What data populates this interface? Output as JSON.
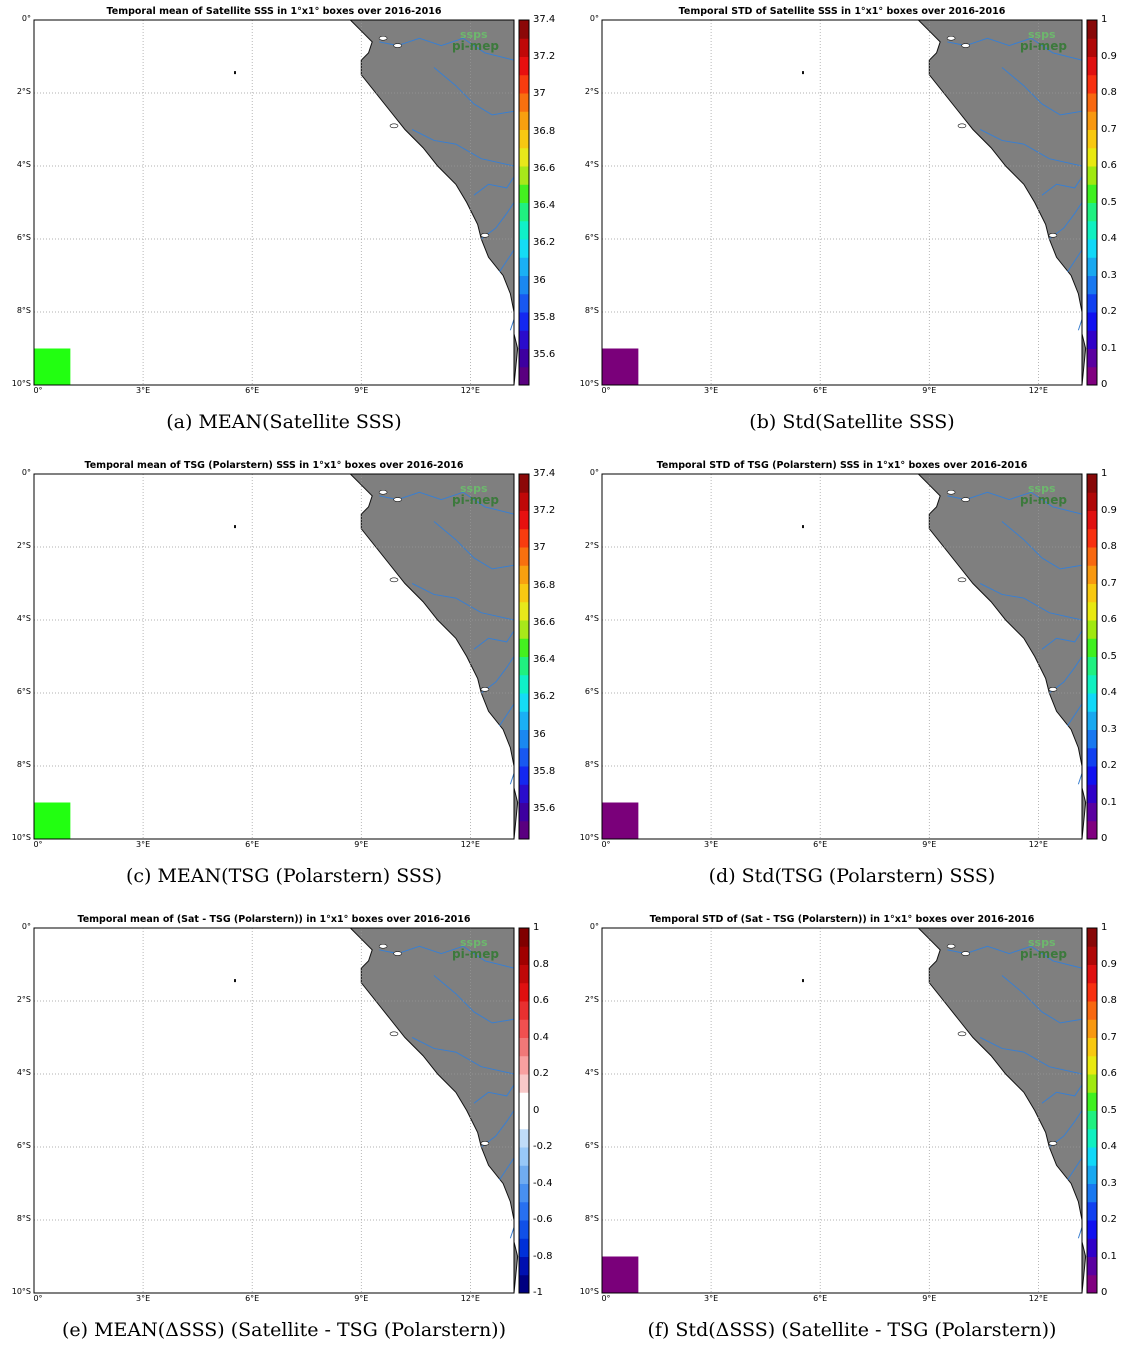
{
  "panels": [
    {
      "id": "a",
      "title": "Temporal mean of Satellite SSS in 1°x1° boxes over 2016-2016",
      "caption": "(a) MEAN(Satellite SSS)",
      "box_color": "#22ff11",
      "show_box": true,
      "colorbar": {
        "colors": [
          "#5a0080",
          "#3d00a0",
          "#2a0ccc",
          "#1428f0",
          "#1858f0",
          "#1a88f0",
          "#1ab0f5",
          "#15dcf5",
          "#10f0c8",
          "#20f080",
          "#44f020",
          "#a8e81a",
          "#e8e81a",
          "#f8c812",
          "#f8a010",
          "#f87010",
          "#f83c10",
          "#e81010",
          "#c00808",
          "#8c0808"
        ],
        "ticks": [
          "37.4",
          "37.2",
          "37",
          "36.8",
          "36.6",
          "36.4",
          "36.2",
          "36",
          "35.8",
          "35.6"
        ]
      }
    },
    {
      "id": "b",
      "title": "Temporal STD of Satellite SSS in 1°x1° boxes over 2016-2016",
      "caption": "(b) Std(Satellite SSS)",
      "box_color": "#7a007a",
      "show_box": true,
      "colorbar": {
        "colors": [
          "#800080",
          "#5a00a0",
          "#3000c8",
          "#1010f0",
          "#1040f0",
          "#1878f0",
          "#18a8f0",
          "#10d8f8",
          "#10f0c0",
          "#20f080",
          "#40f020",
          "#a0e810",
          "#e8e810",
          "#f8c810",
          "#f89810",
          "#f86810",
          "#f83010",
          "#e01010",
          "#b00808",
          "#880808"
        ],
        "ticks": [
          "1",
          "0.9",
          "0.8",
          "0.7",
          "0.6",
          "0.5",
          "0.4",
          "0.3",
          "0.2",
          "0.1",
          "0"
        ]
      }
    },
    {
      "id": "c",
      "title": "Temporal mean of TSG (Polarstern) SSS in 1°x1° boxes over 2016-2016",
      "caption": "(c) MEAN(TSG (Polarstern) SSS)",
      "box_color": "#22ff11",
      "show_box": true,
      "colorbar": {
        "colors": [
          "#5a0080",
          "#3d00a0",
          "#2a0ccc",
          "#1428f0",
          "#1858f0",
          "#1a88f0",
          "#1ab0f5",
          "#15dcf5",
          "#10f0c8",
          "#20f080",
          "#44f020",
          "#a8e81a",
          "#e8e81a",
          "#f8c812",
          "#f8a010",
          "#f87010",
          "#f83c10",
          "#e81010",
          "#c00808",
          "#8c0808"
        ],
        "ticks": [
          "37.4",
          "37.2",
          "37",
          "36.8",
          "36.6",
          "36.4",
          "36.2",
          "36",
          "35.8",
          "35.6"
        ]
      }
    },
    {
      "id": "d",
      "title": "Temporal STD of TSG (Polarstern) SSS in 1°x1° boxes over 2016-2016",
      "caption": "(d) Std(TSG (Polarstern) SSS)",
      "box_color": "#7a007a",
      "show_box": true,
      "colorbar": {
        "colors": [
          "#800080",
          "#5a00a0",
          "#3000c8",
          "#1010f0",
          "#1040f0",
          "#1878f0",
          "#18a8f0",
          "#10d8f8",
          "#10f0c0",
          "#20f080",
          "#40f020",
          "#a0e810",
          "#e8e810",
          "#f8c810",
          "#f89810",
          "#f86810",
          "#f83010",
          "#e01010",
          "#b00808",
          "#880808"
        ],
        "ticks": [
          "1",
          "0.9",
          "0.8",
          "0.7",
          "0.6",
          "0.5",
          "0.4",
          "0.3",
          "0.2",
          "0.1",
          "0"
        ]
      }
    },
    {
      "id": "e",
      "title": "Temporal mean of (Sat - TSG (Polarstern)) in 1°x1° boxes over 2016-2016",
      "caption": "(e) MEAN(ΔSSS) (Satellite - TSG (Polarstern))",
      "box_color": "",
      "show_box": false,
      "colorbar": {
        "colors": [
          "#000080",
          "#0010b0",
          "#0030d8",
          "#1050e8",
          "#2870f0",
          "#4890f0",
          "#70acf0",
          "#98c8f8",
          "#c0dcf8",
          "#ffffff",
          "#ffffff",
          "#f8c8c8",
          "#f8a0a0",
          "#f07878",
          "#f05050",
          "#e83030",
          "#e01010",
          "#c00808",
          "#a00000",
          "#800000"
        ],
        "ticks": [
          "1",
          "0.8",
          "0.6",
          "0.4",
          "0.2",
          "0",
          "-0.2",
          "-0.4",
          "-0.6",
          "-0.8",
          "-1"
        ]
      }
    },
    {
      "id": "f",
      "title": "Temporal STD of (Sat - TSG (Polarstern)) in 1°x1° boxes over 2016-2016",
      "caption": "(f) Std(ΔSSS) (Satellite - TSG (Polarstern))",
      "box_color": "#7a007a",
      "show_box": true,
      "colorbar": {
        "colors": [
          "#800080",
          "#5a00a0",
          "#3000c8",
          "#1010f0",
          "#1040f0",
          "#1878f0",
          "#18a8f0",
          "#10d8f8",
          "#10f0c0",
          "#20f080",
          "#40f020",
          "#a0e810",
          "#e8e810",
          "#f8c810",
          "#f89810",
          "#f86810",
          "#f83010",
          "#e01010",
          "#b00808",
          "#880808"
        ],
        "ticks": [
          "1",
          "0.9",
          "0.8",
          "0.7",
          "0.6",
          "0.5",
          "0.4",
          "0.3",
          "0.2",
          "0.1",
          "0"
        ]
      }
    }
  ],
  "lat_labels": [
    "0°",
    "2°S",
    "4°S",
    "6°S",
    "8°S",
    "10°S"
  ],
  "lon_labels": [
    "0°",
    "3°E",
    "6°E",
    "9°E",
    "12°E"
  ],
  "logo": {
    "line1": "ssps",
    "line2": "pi-mep"
  },
  "colors": {
    "land": "#7f7f7f",
    "rivers": "#3a7fd0",
    "grid": "#999999"
  }
}
